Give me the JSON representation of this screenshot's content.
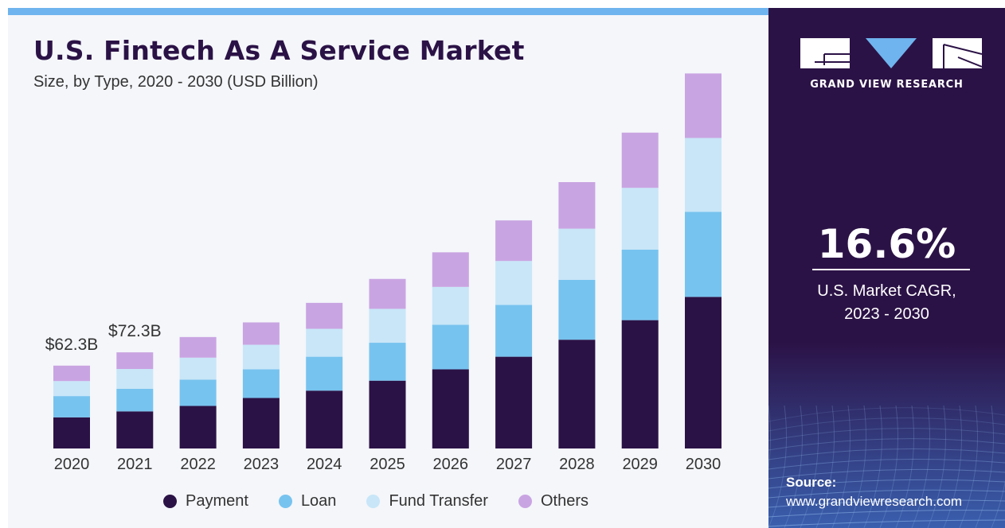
{
  "title": "U.S. Fintech As A Service Market",
  "subtitle": "Size, by Type, 2020 - 2030 (USD Billion)",
  "side_panel": {
    "brand": "GRAND VIEW RESEARCH",
    "cagr_value": "16.6%",
    "cagr_label_line1": "U.S. Market CAGR,",
    "cagr_label_line2": "2023 - 2030",
    "source_label": "Source:",
    "source_url": "www.grandviewresearch.com"
  },
  "colors": {
    "panel": "#2b1246",
    "accent_bar": "#6fb4ee",
    "Payment": "#2b1246",
    "Loan": "#77c3ef",
    "Fund Transfer": "#c8e6f8",
    "Others": "#c9a4e2"
  },
  "chart_data": {
    "type": "bar",
    "stacked": true,
    "categories": [
      "2020",
      "2021",
      "2022",
      "2023",
      "2024",
      "2025",
      "2026",
      "2027",
      "2028",
      "2029",
      "2030"
    ],
    "series": [
      {
        "name": "Payment",
        "values": [
          23.4,
          27.9,
          32.0,
          38.0,
          43.5,
          51.0,
          59.5,
          69.0,
          81.8,
          96.5,
          114.0
        ]
      },
      {
        "name": "Loan",
        "values": [
          16.0,
          17.0,
          19.8,
          21.5,
          25.5,
          28.5,
          33.5,
          39.0,
          45.0,
          53.0,
          64.0
        ]
      },
      {
        "name": "Fund Transfer",
        "values": [
          11.3,
          14.9,
          16.5,
          18.5,
          21.0,
          25.5,
          28.5,
          33.0,
          38.5,
          46.5,
          55.5
        ]
      },
      {
        "name": "Others",
        "values": [
          11.6,
          12.5,
          15.5,
          16.8,
          19.5,
          22.5,
          26.0,
          30.5,
          35.0,
          41.5,
          48.5
        ]
      }
    ],
    "data_labels": [
      {
        "category": "2020",
        "text": "$62.3B"
      },
      {
        "category": "2021",
        "text": "$72.3B"
      }
    ],
    "ylim": [
      0,
      290
    ],
    "grid": false,
    "y_axis_visible": false,
    "legend_position": "bottom"
  }
}
